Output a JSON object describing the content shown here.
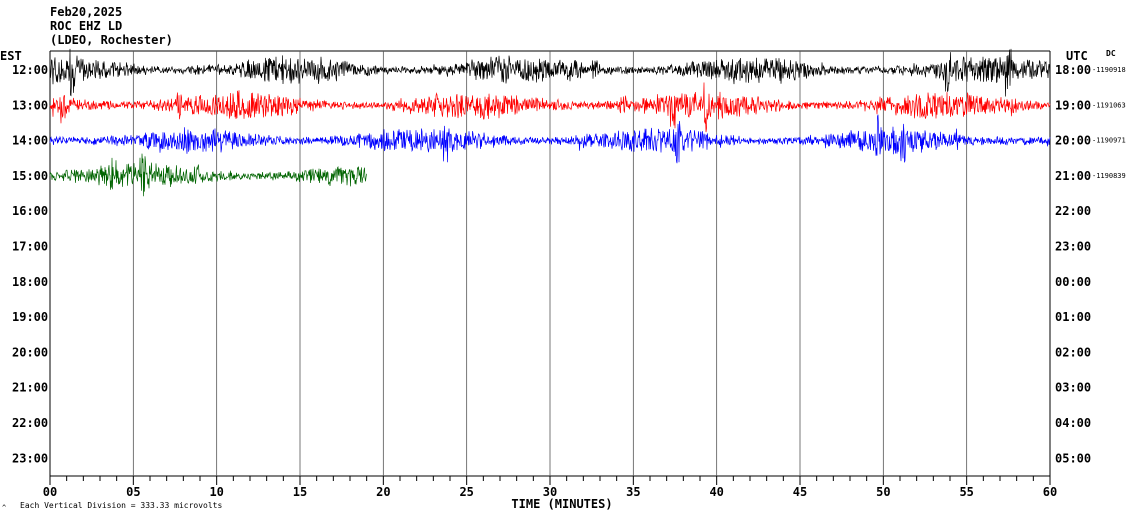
{
  "header": {
    "date": "Feb20,2025",
    "station": "ROC EHZ LD",
    "network": "(LDEO, Rochester)"
  },
  "labels": {
    "left_zone": "EST",
    "right_zone": "UTC",
    "dc": "DC",
    "x_axis_title": "TIME (MINUTES)",
    "scale_note": "Each Vertical Division = 333.33 microvolts"
  },
  "colors": {
    "background": "#ffffff",
    "grid": "#000000",
    "trace_1": "#000000",
    "trace_2": "#ff0000",
    "trace_3": "#0000ff",
    "trace_4": "#006400"
  },
  "chart_data": {
    "type": "line",
    "x_ticks": [
      "00",
      "05",
      "10",
      "15",
      "20",
      "25",
      "30",
      "35",
      "40",
      "45",
      "50",
      "55",
      "60"
    ],
    "xlim": [
      0,
      60
    ],
    "left_rows": [
      "12:00",
      "13:00",
      "14:00",
      "15:00",
      "16:00",
      "17:00",
      "18:00",
      "19:00",
      "20:00",
      "21:00",
      "22:00",
      "23:00"
    ],
    "right_rows": [
      "18:00",
      "19:00",
      "20:00",
      "21:00",
      "22:00",
      "23:00",
      "00:00",
      "01:00",
      "02:00",
      "03:00",
      "04:00",
      "05:00"
    ],
    "dc_offsets": [
      "1190918",
      "1191063",
      "1190971",
      "1190839"
    ],
    "series": [
      {
        "row": 0,
        "color": "#000000",
        "minutes": 60,
        "amplitude": 0.9
      },
      {
        "row": 1,
        "color": "#ff0000",
        "minutes": 60,
        "amplitude": 0.9
      },
      {
        "row": 2,
        "color": "#0000ff",
        "minutes": 60,
        "amplitude": 0.8
      },
      {
        "row": 3,
        "color": "#006400",
        "minutes": 19,
        "amplitude": 0.8
      }
    ]
  }
}
